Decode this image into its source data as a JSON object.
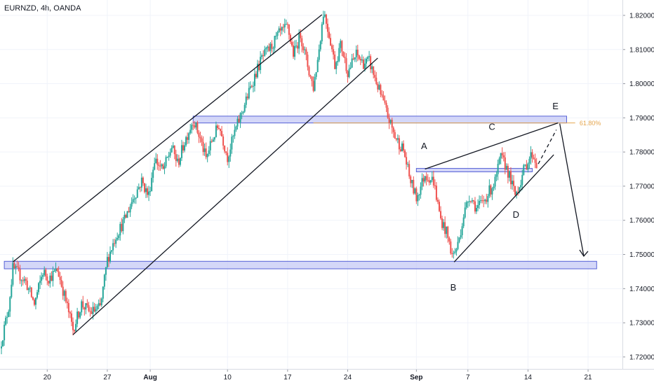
{
  "title": "EURNZD, 4h, OANDA",
  "chart_data": {
    "type": "candlestick",
    "ylim": [
      1.7165,
      1.8245
    ],
    "y_ticks": [
      "1.72000",
      "1.73000",
      "1.74000",
      "1.75000",
      "1.76000",
      "1.77000",
      "1.78000",
      "1.79000",
      "1.80000",
      "1.81000",
      "1.82000"
    ],
    "x_ticks": [
      {
        "label": "20",
        "day": 3,
        "bold": false
      },
      {
        "label": "27",
        "day": 10,
        "bold": false
      },
      {
        "label": "Aug",
        "day": 15,
        "bold": true
      },
      {
        "label": "10",
        "day": 24,
        "bold": false
      },
      {
        "label": "17",
        "day": 31,
        "bold": false
      },
      {
        "label": "24",
        "day": 38,
        "bold": false
      },
      {
        "label": "Sep",
        "day": 46,
        "bold": true
      },
      {
        "label": "7",
        "day": 52,
        "bold": false
      },
      {
        "label": "14",
        "day": 59,
        "bold": false
      },
      {
        "label": "21",
        "day": 66,
        "bold": false
      }
    ],
    "x_range_days": [
      -2.5,
      70
    ],
    "price_path": [
      [
        -2.5,
        1.7225
      ],
      [
        -1.5,
        1.7345
      ],
      [
        -1,
        1.746
      ],
      [
        0.5,
        1.742
      ],
      [
        1.5,
        1.7355
      ],
      [
        2.5,
        1.745
      ],
      [
        3.2,
        1.743
      ],
      [
        4.2,
        1.7455
      ],
      [
        5,
        1.738
      ],
      [
        6,
        1.728
      ],
      [
        7,
        1.7355
      ],
      [
        8,
        1.733
      ],
      [
        9.2,
        1.7345
      ],
      [
        10,
        1.7485
      ],
      [
        11,
        1.7555
      ],
      [
        12,
        1.76
      ],
      [
        13,
        1.7665
      ],
      [
        14,
        1.7715
      ],
      [
        14.8,
        1.767
      ],
      [
        15.5,
        1.778
      ],
      [
        16.5,
        1.7745
      ],
      [
        17.5,
        1.7815
      ],
      [
        18.2,
        1.7765
      ],
      [
        19,
        1.783
      ],
      [
        20,
        1.7895
      ],
      [
        20.8,
        1.784
      ],
      [
        21.5,
        1.778
      ],
      [
        22.2,
        1.7835
      ],
      [
        23,
        1.788
      ],
      [
        24,
        1.7785
      ],
      [
        24.8,
        1.7855
      ],
      [
        25.5,
        1.7905
      ],
      [
        26.5,
        1.7975
      ],
      [
        27.2,
        1.8025
      ],
      [
        28,
        1.8075
      ],
      [
        29,
        1.8105
      ],
      [
        30,
        1.8145
      ],
      [
        31,
        1.8165
      ],
      [
        31.7,
        1.8085
      ],
      [
        32.5,
        1.8145
      ],
      [
        33.5,
        1.8035
      ],
      [
        34,
        1.799
      ],
      [
        34.5,
        1.807
      ],
      [
        35.2,
        1.8215
      ],
      [
        36,
        1.8125
      ],
      [
        36.5,
        1.8055
      ],
      [
        37.2,
        1.8115
      ],
      [
        38,
        1.8035
      ],
      [
        39,
        1.8085
      ],
      [
        39.8,
        1.806
      ],
      [
        40.5,
        1.8065
      ],
      [
        41.2,
        1.8015
      ],
      [
        42,
        1.7955
      ],
      [
        42.8,
        1.7895
      ],
      [
        43.5,
        1.7845
      ],
      [
        44.5,
        1.7805
      ],
      [
        45.2,
        1.7725
      ],
      [
        46,
        1.7665
      ],
      [
        47,
        1.7735
      ],
      [
        48,
        1.7715
      ],
      [
        48.8,
        1.7605
      ],
      [
        49.5,
        1.7565
      ],
      [
        50.2,
        1.7495
      ],
      [
        50.8,
        1.7525
      ],
      [
        51.5,
        1.7615
      ],
      [
        52.2,
        1.7675
      ],
      [
        53,
        1.7635
      ],
      [
        53.8,
        1.7655
      ],
      [
        54.5,
        1.7685
      ],
      [
        55.2,
        1.7715
      ],
      [
        55.8,
        1.7785
      ],
      [
        56.5,
        1.7755
      ],
      [
        57,
        1.7715
      ],
      [
        57.5,
        1.7675
      ],
      [
        58,
        1.7705
      ],
      [
        58.5,
        1.7745
      ],
      [
        59,
        1.7775
      ],
      [
        59.5,
        1.7795
      ],
      [
        60,
        1.7765
      ]
    ],
    "annotations": {
      "wave_labels": [
        "A",
        "B",
        "C",
        "D",
        "E"
      ],
      "fib_label": "61.80%",
      "zones": [
        {
          "name": "resistance-zone",
          "y1": 1.7905,
          "y2": 1.7885,
          "x1": 20,
          "x2": 63.5
        },
        {
          "name": "support-zone",
          "y1": 1.748,
          "y2": 1.7458,
          "x1": -2,
          "x2": 67
        },
        {
          "name": "mid-zone",
          "y1": 1.7752,
          "y2": 1.7742,
          "x1": 46,
          "x2": 59.5
        }
      ],
      "fib_level": 1.7885
    }
  },
  "colors": {
    "up": "#26a69a",
    "down": "#ef5350",
    "zone_fill": "#c5caf6",
    "zone_stroke": "#5561d6",
    "fib": "#e5a64f",
    "grid": "#f0f3fa",
    "axis": "#d8dbe3"
  }
}
